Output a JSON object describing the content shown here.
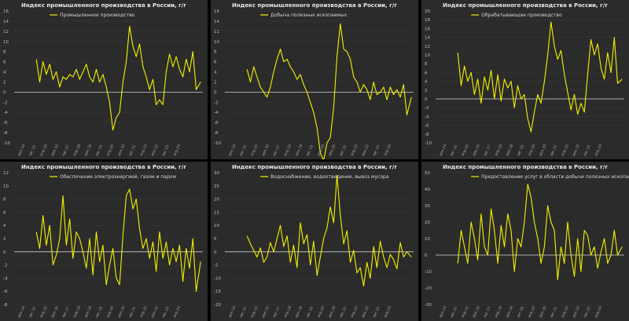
{
  "chart_data": [
    {
      "type": "line",
      "title": "Индекс промышленного производства в России, г/г",
      "xlabel": "",
      "ylabel": "",
      "ylim": [
        -10,
        16
      ],
      "yticks": [
        -10,
        -8,
        -6,
        -4,
        -2,
        0,
        2,
        4,
        6,
        8,
        10,
        12,
        14,
        16
      ],
      "xticks": [
        "дек.14",
        "авг.15",
        "апр.16",
        "дек.16",
        "авг.17",
        "апр.18",
        "дек.18",
        "авг.19",
        "апр.20",
        "дек.20",
        "авг.21",
        "апр.22",
        "дек.22",
        "авг.23",
        "апр.24"
      ],
      "grid": true,
      "legend": "top-left",
      "color": "#f2f200",
      "series": [
        {
          "name": "Промышленное производство",
          "x": [
            2.0,
            2.3,
            2.6,
            2.9,
            3.2,
            3.5,
            3.8,
            4.1,
            4.4,
            4.7,
            5.0,
            5.3,
            5.6,
            5.9,
            6.2,
            6.5,
            6.8,
            7.1,
            7.4,
            7.7,
            8.0,
            8.3,
            8.6,
            8.9,
            9.2,
            9.5,
            9.8,
            10.1,
            10.4,
            10.7,
            11.0,
            11.3,
            11.6,
            11.9,
            12.2,
            12.5,
            12.8,
            13.1,
            13.4,
            13.7,
            14.0,
            14.3,
            14.6,
            14.9,
            15.2,
            15.5,
            15.8,
            16.1,
            16.4,
            16.8
          ],
          "values": [
            6.5,
            2.0,
            6.0,
            3.5,
            5.5,
            2.5,
            4.0,
            1.0,
            3.0,
            2.5,
            3.5,
            3.0,
            4.5,
            2.5,
            4.0,
            5.5,
            3.0,
            2.0,
            4.5,
            2.0,
            3.5,
            1.0,
            -2.0,
            -7.5,
            -5.0,
            -4.0,
            2.0,
            6.0,
            13.0,
            9.0,
            7.0,
            9.5,
            5.0,
            3.0,
            0.5,
            2.5,
            -2.5,
            -1.5,
            -2.5,
            4.0,
            7.5,
            5.0,
            7.0,
            4.5,
            3.0,
            6.5,
            4.0,
            8.0,
            0.5,
            2.0
          ]
        }
      ]
    },
    {
      "type": "line",
      "title": "Индекс промышленного производства в России, г/г",
      "xlabel": "",
      "ylabel": "",
      "ylim": [
        -10,
        16
      ],
      "yticks": [
        -10,
        -8,
        -6,
        -4,
        -2,
        0,
        2,
        4,
        6,
        8,
        10,
        12,
        14,
        16
      ],
      "xticks": [
        "дек.14",
        "авг.15",
        "апр.16",
        "дек.16",
        "авг.17",
        "апр.18",
        "дек.18",
        "авг.19",
        "апр.20",
        "дек.20",
        "авг.21",
        "апр.22",
        "дек.22",
        "авг.23",
        "апр.24"
      ],
      "grid": true,
      "legend": "top-left",
      "color": "#f2f200",
      "series": [
        {
          "name": "Добыча полезных ископаемых",
          "x": [
            2.0,
            2.3,
            2.6,
            2.9,
            3.2,
            3.5,
            3.8,
            4.1,
            4.4,
            4.7,
            5.0,
            5.3,
            5.6,
            5.9,
            6.2,
            6.5,
            6.8,
            7.1,
            7.4,
            7.7,
            8.0,
            8.3,
            8.6,
            8.9,
            9.2,
            9.5,
            9.8,
            10.1,
            10.4,
            10.7,
            11.0,
            11.3,
            11.6,
            11.9,
            12.2,
            12.5,
            12.8,
            13.1,
            13.4,
            13.7,
            14.0,
            14.3,
            14.6,
            14.9,
            15.2,
            15.5,
            15.8,
            16.1,
            16.4,
            16.8
          ],
          "values": [
            4.5,
            2.0,
            5.0,
            3.0,
            1.0,
            0.0,
            -1.0,
            1.0,
            4.0,
            6.5,
            8.5,
            6.0,
            6.5,
            5.0,
            4.0,
            2.5,
            3.5,
            1.5,
            0.0,
            -2.0,
            -4.0,
            -7.0,
            -12.0,
            -13.5,
            -10.0,
            -9.0,
            -3.0,
            7.0,
            13.5,
            8.5,
            8.0,
            6.5,
            3.0,
            2.0,
            0.0,
            1.5,
            0.5,
            -1.5,
            2.0,
            -0.5,
            0.0,
            1.0,
            -1.5,
            1.0,
            -0.5,
            0.5,
            -1.0,
            1.5,
            -4.5,
            -1.0
          ]
        }
      ]
    },
    {
      "type": "line",
      "title": "Индекс промышленного производства в России, г/г",
      "xlabel": "",
      "ylabel": "",
      "ylim": [
        -10,
        20
      ],
      "yticks": [
        -10,
        -8,
        -6,
        -4,
        -2,
        0,
        2,
        4,
        6,
        8,
        10,
        12,
        14,
        16,
        18,
        20
      ],
      "xticks": [
        "дек.14",
        "авг.15",
        "апр.16",
        "дек.16",
        "авг.17",
        "апр.18",
        "дек.18",
        "авг.19",
        "апр.20",
        "дек.20",
        "авг.21",
        "апр.22",
        "дек.22",
        "авг.23",
        "апр.24"
      ],
      "grid": true,
      "legend": "top-left",
      "color": "#f2f200",
      "series": [
        {
          "name": "Обрабатывающее производство",
          "x": [
            2.0,
            2.3,
            2.6,
            2.9,
            3.2,
            3.5,
            3.8,
            4.1,
            4.4,
            4.7,
            5.0,
            5.3,
            5.6,
            5.9,
            6.2,
            6.5,
            6.8,
            7.1,
            7.4,
            7.7,
            8.0,
            8.3,
            8.6,
            8.9,
            9.2,
            9.5,
            9.8,
            10.1,
            10.4,
            10.7,
            11.0,
            11.3,
            11.6,
            11.9,
            12.2,
            12.5,
            12.8,
            13.1,
            13.4,
            13.7,
            14.0,
            14.3,
            14.6,
            14.9,
            15.2,
            15.5,
            15.8,
            16.1,
            16.4,
            16.8
          ],
          "values": [
            10.5,
            3.0,
            7.5,
            4.0,
            6.0,
            1.0,
            4.5,
            -1.0,
            5.0,
            2.0,
            6.5,
            0.0,
            5.5,
            -0.5,
            4.5,
            2.5,
            4.0,
            -2.0,
            3.0,
            0.0,
            1.0,
            -4.5,
            -7.5,
            -3.0,
            1.0,
            -1.0,
            4.0,
            10.0,
            17.5,
            12.0,
            9.0,
            11.0,
            5.5,
            1.5,
            -2.5,
            1.0,
            -3.5,
            -1.0,
            -3.0,
            5.5,
            13.5,
            10.0,
            12.5,
            7.0,
            4.5,
            10.5,
            6.0,
            14.0,
            3.5,
            4.5
          ]
        }
      ]
    },
    {
      "type": "line",
      "title": "Индекс промышленного производства в России, г/г",
      "xlabel": "",
      "ylabel": "",
      "ylim": [
        -8,
        12
      ],
      "yticks": [
        -8,
        -6,
        -4,
        -2,
        0,
        2,
        4,
        6,
        8,
        10,
        12
      ],
      "xticks": [
        "дек.14",
        "авг.15",
        "апр.16",
        "дек.16",
        "авг.17",
        "апр.18",
        "дек.18",
        "авг.19",
        "апр.20",
        "дек.20",
        "авг.21",
        "апр.22",
        "дек.22",
        "авг.23",
        "апр.24"
      ],
      "grid": true,
      "legend": "top-left",
      "color": "#f2f200",
      "series": [
        {
          "name": "Обеспечение электроэнергией, газом и паром",
          "x": [
            2.0,
            2.3,
            2.6,
            2.9,
            3.2,
            3.5,
            3.8,
            4.1,
            4.4,
            4.7,
            5.0,
            5.3,
            5.6,
            5.9,
            6.2,
            6.5,
            6.8,
            7.1,
            7.4,
            7.7,
            8.0,
            8.3,
            8.6,
            8.9,
            9.2,
            9.5,
            9.8,
            10.1,
            10.4,
            10.7,
            11.0,
            11.3,
            11.6,
            11.9,
            12.2,
            12.5,
            12.8,
            13.1,
            13.4,
            13.7,
            14.0,
            14.3,
            14.6,
            14.9,
            15.2,
            15.5,
            15.8,
            16.1,
            16.4,
            16.8
          ],
          "values": [
            3.0,
            0.5,
            5.5,
            1.0,
            4.0,
            -2.0,
            -0.5,
            2.0,
            8.5,
            1.0,
            5.0,
            -1.0,
            3.0,
            2.0,
            0.0,
            -2.5,
            2.0,
            -3.5,
            3.0,
            -1.5,
            1.0,
            -5.0,
            -2.0,
            0.5,
            -4.0,
            -5.0,
            2.5,
            8.5,
            9.5,
            6.5,
            8.0,
            3.5,
            0.5,
            2.0,
            -1.0,
            1.5,
            -3.0,
            3.0,
            -1.0,
            1.5,
            -2.0,
            0.5,
            -1.5,
            1.0,
            -4.5,
            0.5,
            -2.5,
            2.0,
            -6.0,
            -1.5
          ]
        }
      ]
    },
    {
      "type": "line",
      "title": "Индекс промышленного производства в России, г/г",
      "xlabel": "",
      "ylabel": "",
      "ylim": [
        -20,
        30
      ],
      "yticks": [
        -20,
        -15,
        -10,
        -5,
        0,
        5,
        10,
        15,
        20,
        25,
        30
      ],
      "xticks": [
        "дек.14",
        "авг.15",
        "апр.16",
        "дек.16",
        "авг.17",
        "апр.18",
        "дек.18",
        "авг.19",
        "апр.20",
        "дек.20",
        "авг.21",
        "апр.22",
        "дек.22",
        "авг.23",
        "апр.24"
      ],
      "grid": true,
      "legend": "top-left",
      "color": "#f2f200",
      "series": [
        {
          "name": "Водоснабжение, водоотведение, вывоз мусора",
          "x": [
            2.0,
            2.3,
            2.6,
            2.9,
            3.2,
            3.5,
            3.8,
            4.1,
            4.4,
            4.7,
            5.0,
            5.3,
            5.6,
            5.9,
            6.2,
            6.5,
            6.8,
            7.1,
            7.4,
            7.7,
            8.0,
            8.3,
            8.6,
            8.9,
            9.2,
            9.5,
            9.8,
            10.1,
            10.4,
            10.7,
            11.0,
            11.3,
            11.6,
            11.9,
            12.2,
            12.5,
            12.8,
            13.1,
            13.4,
            13.7,
            14.0,
            14.3,
            14.6,
            14.9,
            15.2,
            15.5,
            15.8,
            16.1,
            16.4,
            16.8
          ],
          "values": [
            6.0,
            3.0,
            0.5,
            -2.0,
            1.5,
            -4.0,
            -2.0,
            3.5,
            0.0,
            5.0,
            10.0,
            2.0,
            6.0,
            -4.0,
            2.5,
            -6.0,
            11.0,
            3.0,
            6.5,
            -5.0,
            4.0,
            -9.0,
            -2.0,
            5.0,
            9.0,
            17.0,
            11.0,
            29.0,
            14.0,
            3.0,
            8.0,
            -4.0,
            0.5,
            -8.0,
            -6.0,
            -13.0,
            -4.0,
            -10.0,
            2.0,
            -6.0,
            4.0,
            -2.0,
            -6.0,
            -1.0,
            -3.0,
            -6.5,
            3.5,
            -2.0,
            0.0,
            -2.0
          ]
        }
      ]
    },
    {
      "type": "line",
      "title": "Индекс промышленного производства в России, г/г",
      "xlabel": "",
      "ylabel": "",
      "ylim": [
        -30,
        50
      ],
      "yticks": [
        -30,
        -20,
        -10,
        0,
        10,
        20,
        30,
        40,
        50
      ],
      "xticks": [
        "дек.14",
        "авг.15",
        "апр.16",
        "дек.16",
        "авг.17",
        "апр.18",
        "дек.18",
        "авг.19",
        "апр.20",
        "дек.20",
        "авг.21",
        "апр.22",
        "дек.22",
        "авг.23",
        "апр.24"
      ],
      "grid": true,
      "legend": "top-left",
      "color": "#f2f200",
      "series": [
        {
          "name": "Предоставление услуг в области добычи полезных ископаемых",
          "x": [
            2.0,
            2.3,
            2.6,
            2.9,
            3.2,
            3.5,
            3.8,
            4.1,
            4.4,
            4.7,
            5.0,
            5.3,
            5.6,
            5.9,
            6.2,
            6.5,
            6.8,
            7.1,
            7.4,
            7.7,
            8.0,
            8.3,
            8.6,
            8.9,
            9.2,
            9.5,
            9.8,
            10.1,
            10.4,
            10.7,
            11.0,
            11.3,
            11.6,
            11.9,
            12.2,
            12.5,
            12.8,
            13.1,
            13.4,
            13.7,
            14.0,
            14.3,
            14.6,
            14.9,
            15.2,
            15.5,
            15.8,
            16.1,
            16.4,
            16.8
          ],
          "values": [
            -5.0,
            15.0,
            5.0,
            -5.0,
            20.0,
            10.0,
            -3.0,
            25.0,
            5.0,
            0.0,
            28.0,
            15.0,
            -5.0,
            18.0,
            5.0,
            25.0,
            15.0,
            -10.0,
            10.0,
            5.0,
            20.0,
            43.0,
            35.0,
            20.0,
            10.0,
            -5.0,
            5.0,
            30.0,
            20.0,
            15.0,
            -15.0,
            5.0,
            -5.0,
            20.0,
            0.0,
            -13.0,
            10.0,
            -10.0,
            15.0,
            12.0,
            0.0,
            5.0,
            -8.0,
            2.0,
            10.0,
            -5.0,
            0.0,
            15.0,
            0.0,
            5.0
          ]
        }
      ]
    }
  ]
}
